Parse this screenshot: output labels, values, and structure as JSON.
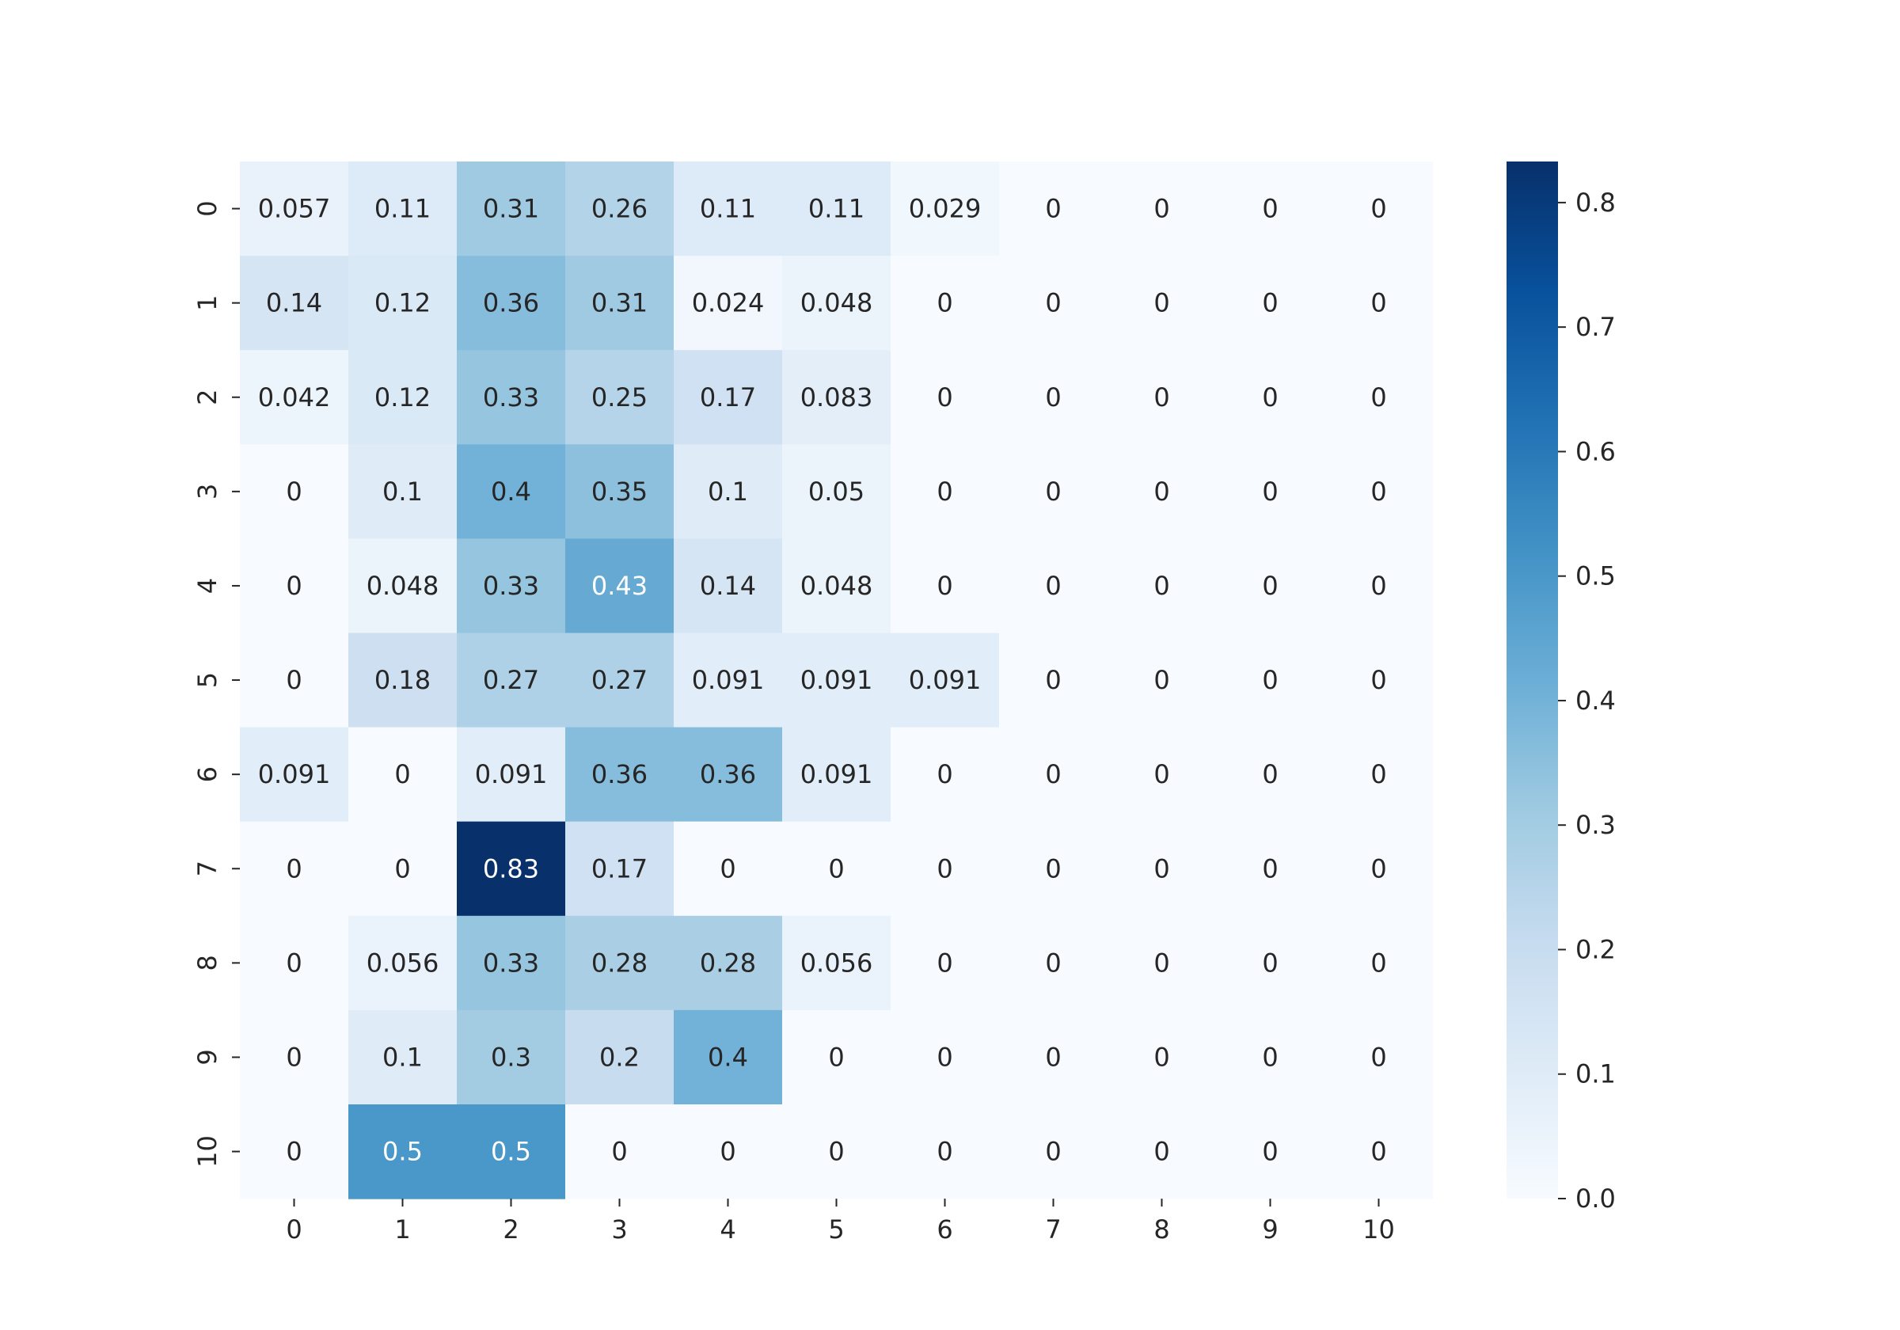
{
  "chart_data": {
    "type": "heatmap",
    "title": "",
    "xlabel": "",
    "ylabel": "",
    "x_categories": [
      "0",
      "1",
      "2",
      "3",
      "4",
      "5",
      "6",
      "7",
      "8",
      "9",
      "10"
    ],
    "y_categories": [
      "0",
      "1",
      "2",
      "3",
      "4",
      "5",
      "6",
      "7",
      "8",
      "9",
      "10"
    ],
    "cell_labels": [
      [
        "0.057",
        "0.11",
        "0.31",
        "0.26",
        "0.11",
        "0.11",
        "0.029",
        "0",
        "0",
        "0",
        "0"
      ],
      [
        "0.14",
        "0.12",
        "0.36",
        "0.31",
        "0.024",
        "0.048",
        "0",
        "0",
        "0",
        "0",
        "0"
      ],
      [
        "0.042",
        "0.12",
        "0.33",
        "0.25",
        "0.17",
        "0.083",
        "0",
        "0",
        "0",
        "0",
        "0"
      ],
      [
        "0",
        "0.1",
        "0.4",
        "0.35",
        "0.1",
        "0.05",
        "0",
        "0",
        "0",
        "0",
        "0"
      ],
      [
        "0",
        "0.048",
        "0.33",
        "0.43",
        "0.14",
        "0.048",
        "0",
        "0",
        "0",
        "0",
        "0"
      ],
      [
        "0",
        "0.18",
        "0.27",
        "0.27",
        "0.091",
        "0.091",
        "0.091",
        "0",
        "0",
        "0",
        "0"
      ],
      [
        "0.091",
        "0",
        "0.091",
        "0.36",
        "0.36",
        "0.091",
        "0",
        "0",
        "0",
        "0",
        "0"
      ],
      [
        "0",
        "0",
        "0.83",
        "0.17",
        "0",
        "0",
        "0",
        "0",
        "0",
        "0",
        "0"
      ],
      [
        "0",
        "0.056",
        "0.33",
        "0.28",
        "0.28",
        "0.056",
        "0",
        "0",
        "0",
        "0",
        "0"
      ],
      [
        "0",
        "0.1",
        "0.3",
        "0.2",
        "0.4",
        "0",
        "0",
        "0",
        "0",
        "0",
        "0"
      ],
      [
        "0",
        "0.5",
        "0.5",
        "0",
        "0",
        "0",
        "0",
        "0",
        "0",
        "0",
        "0"
      ]
    ],
    "colormap": "Blues",
    "colorbar": {
      "range": [
        0.0,
        0.833
      ],
      "ticks": [
        "0.0",
        "0.1",
        "0.2",
        "0.3",
        "0.4",
        "0.5",
        "0.6",
        "0.7",
        "0.8"
      ]
    },
    "colors": {
      "light_text": "#ffffff",
      "dark_text": "#262626"
    }
  }
}
